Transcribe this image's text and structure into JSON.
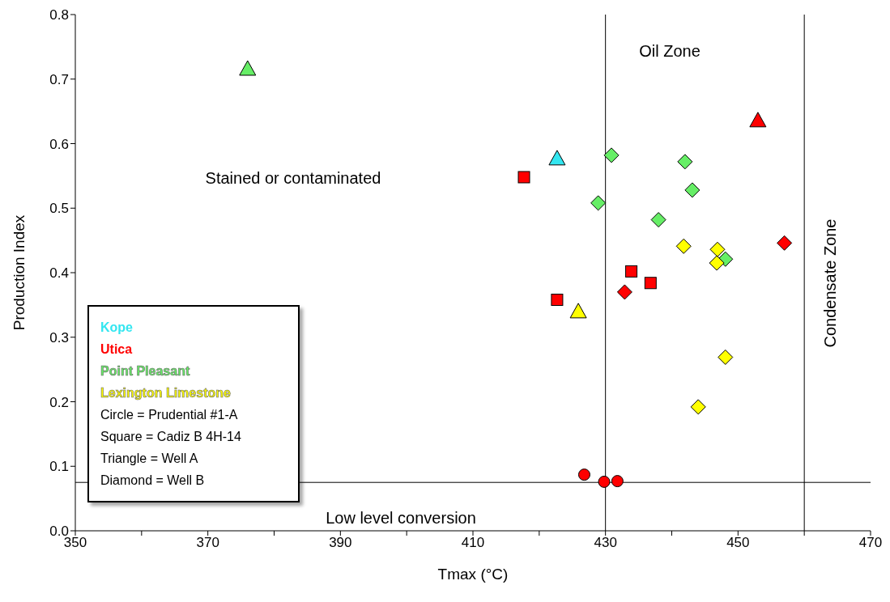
{
  "chart_data": {
    "type": "scatter",
    "xlabel": "Tmax (°C)",
    "ylabel": "Production Index",
    "xlim": [
      350,
      470
    ],
    "ylim": [
      0,
      0.8
    ],
    "xticks": [
      350,
      {
        "value": 360,
        "label": null
      },
      370,
      {
        "value": 380,
        "label": null
      },
      390,
      {
        "value": 400,
        "label": null
      },
      410,
      {
        "value": 420,
        "label": null
      },
      430,
      {
        "value": 440,
        "label": null
      },
      450,
      {
        "value": 460,
        "label": null
      },
      470
    ],
    "yticks": [
      {
        "value": 0,
        "label": "0.0"
      },
      0.1,
      0.2,
      0.3,
      0.4,
      0.5,
      0.6,
      0.7,
      0.8
    ],
    "legend": "bottom left",
    "series": [
      {
        "name": "Kope",
        "color": "#33e6f0",
        "marker": "triangle",
        "x": [
          422.7
        ],
        "values": [
          0.577
        ]
      },
      {
        "name": "Utica",
        "color": "#ff0000",
        "marker": "triangle",
        "x": [
          453.0
        ],
        "values": [
          0.636
        ]
      },
      {
        "color": "#ff0000",
        "marker": "square",
        "x": [
          417.7,
          422.7,
          433.9,
          436.8
        ],
        "values": [
          0.548,
          0.358,
          0.402,
          0.384
        ]
      },
      {
        "color": "#ff0000",
        "marker": "circle",
        "x": [
          426.8,
          429.8,
          431.8
        ],
        "values": [
          0.087,
          0.076,
          0.077
        ]
      },
      {
        "color": "#ff0000",
        "marker": "diamond",
        "x": [
          432.9,
          457.0
        ],
        "values": [
          0.37,
          0.446
        ]
      },
      {
        "name": "Point Pleasant",
        "color": "#66ee66",
        "marker": "triangle",
        "x": [
          376.0
        ],
        "values": [
          0.716
        ]
      },
      {
        "color": "#66ee66",
        "marker": "diamond",
        "x": [
          430.9,
          428.9,
          442.0,
          443.1,
          438.0,
          448.1
        ],
        "values": [
          0.582,
          0.508,
          0.572,
          0.528,
          0.482,
          0.421
        ]
      },
      {
        "name": "Lexington Limestone",
        "color": "#ffff00",
        "marker": "triangle",
        "x": [
          425.9
        ],
        "values": [
          0.34
        ]
      },
      {
        "color": "#ffff00",
        "marker": "diamond",
        "x": [
          441.8,
          446.9,
          446.8,
          448.1,
          444.0
        ],
        "values": [
          0.441,
          0.436,
          0.415,
          0.269,
          0.192
        ]
      }
    ],
    "ref_lines": [
      {
        "axis": "x",
        "value": 430,
        "color": "#000000"
      },
      {
        "axis": "x",
        "value": 460,
        "color": "#000000"
      },
      {
        "axis": "y",
        "value": 0.075,
        "color": "#000000"
      }
    ],
    "annotations": [
      "Oil Zone",
      "Stained or contaminated",
      "Condensate Zone",
      "Low level conversion",
      "Circle = Prudential #1-A",
      "Square = Cadiz B 4H-14",
      "Triangle = Well A",
      "Diamond = Well B"
    ]
  }
}
